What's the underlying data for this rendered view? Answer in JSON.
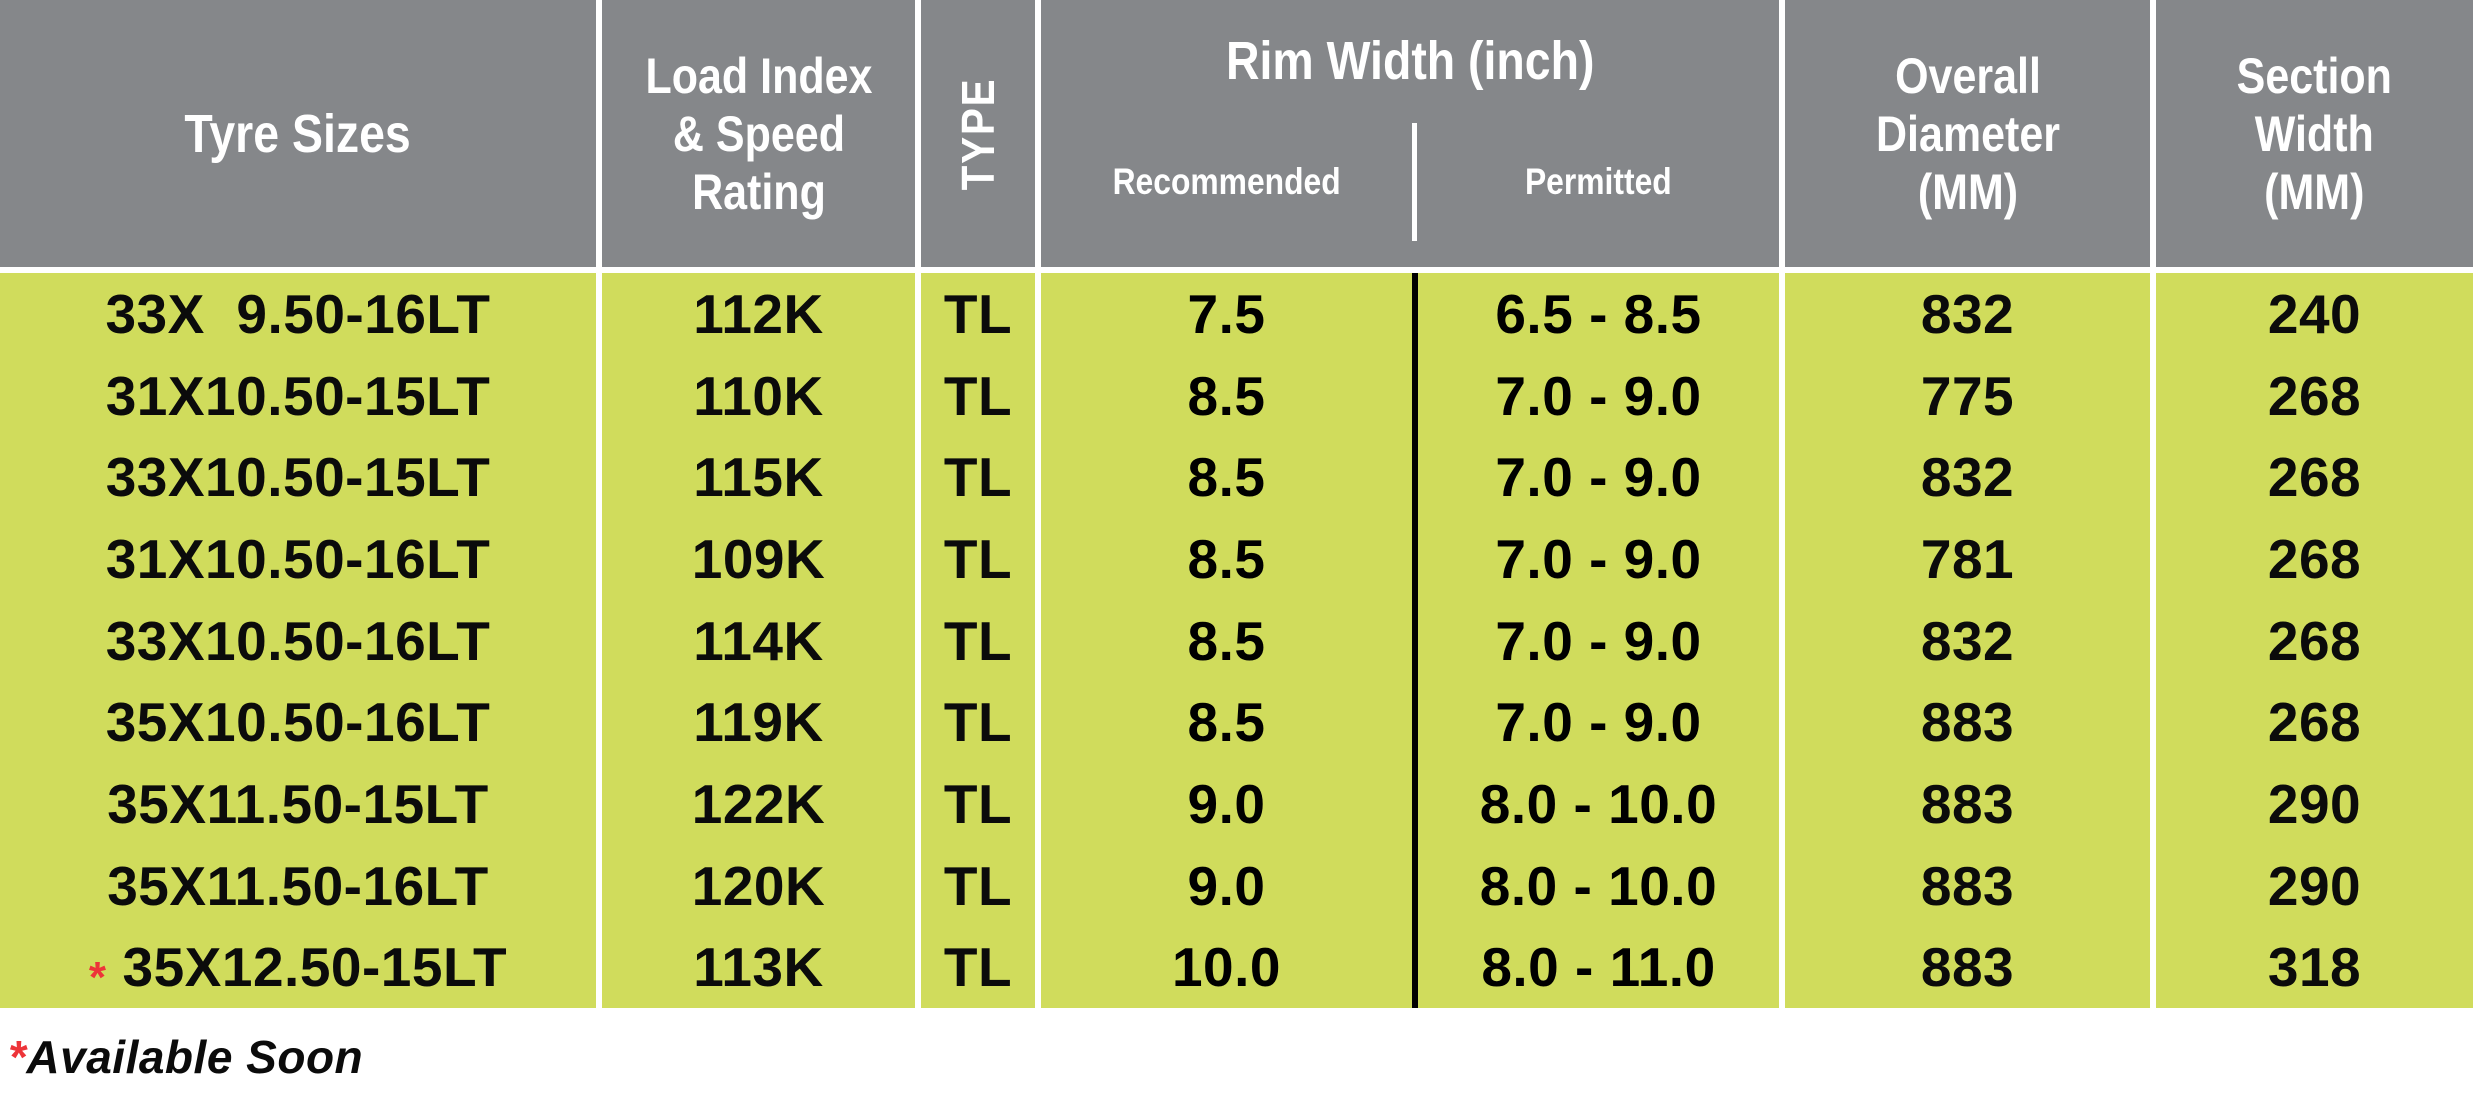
{
  "colors": {
    "header_bg": "#85878a",
    "body_bg": "#d0dc5c",
    "marker_red": "#ed3439",
    "separator_white": "#ffffff",
    "divider_black": "#000000",
    "text_black": "#0b0b0b",
    "header_text": "#ffffff"
  },
  "table": {
    "headers": {
      "tyre_sizes": "Tyre Sizes",
      "load_index_lines": [
        "Load Index",
        "& Speed",
        "Rating"
      ],
      "type": "TYPE",
      "rim_width": "Rim Width (inch)",
      "recommended": "Recommended",
      "permitted": "Permitted",
      "overall_diameter_lines": [
        "Overall",
        "Diameter",
        "(MM)"
      ],
      "section_width_lines": [
        "Section",
        "Width",
        "(MM)"
      ]
    },
    "rows": [
      {
        "tyre_size": "33X  9.50-16LT",
        "load_index": "112K",
        "type": "TL",
        "recommended": "7.5",
        "permitted": "6.5 - 8.5",
        "overall_diameter": "832",
        "section_width": "240"
      },
      {
        "tyre_size": "31X10.50-15LT",
        "load_index": "110K",
        "type": "TL",
        "recommended": "8.5",
        "permitted": "7.0 - 9.0",
        "overall_diameter": "775",
        "section_width": "268"
      },
      {
        "tyre_size": "33X10.50-15LT",
        "load_index": "115K",
        "type": "TL",
        "recommended": "8.5",
        "permitted": "7.0 - 9.0",
        "overall_diameter": "832",
        "section_width": "268"
      },
      {
        "tyre_size": "31X10.50-16LT",
        "load_index": "109K",
        "type": "TL",
        "recommended": "8.5",
        "permitted": "7.0 - 9.0",
        "overall_diameter": "781",
        "section_width": "268"
      },
      {
        "tyre_size": "33X10.50-16LT",
        "load_index": "114K",
        "type": "TL",
        "recommended": "8.5",
        "permitted": "7.0 - 9.0",
        "overall_diameter": "832",
        "section_width": "268"
      },
      {
        "tyre_size": "35X10.50-16LT",
        "load_index": "119K",
        "type": "TL",
        "recommended": "8.5",
        "permitted": "7.0 - 9.0",
        "overall_diameter": "883",
        "section_width": "268"
      },
      {
        "tyre_size": "35X11.50-15LT",
        "load_index": "122K",
        "type": "TL",
        "recommended": "9.0",
        "permitted": "8.0 - 10.0",
        "overall_diameter": "883",
        "section_width": "290"
      },
      {
        "tyre_size": "35X11.50-16LT",
        "load_index": "120K",
        "type": "TL",
        "recommended": "9.0",
        "permitted": "8.0 - 10.0",
        "overall_diameter": "883",
        "section_width": "290"
      },
      {
        "tyre_size": "35X12.50-15LT",
        "load_index": "113K",
        "type": "TL",
        "recommended": "10.0",
        "permitted": "8.0 - 11.0",
        "overall_diameter": "883",
        "section_width": "318",
        "marker": "*"
      }
    ]
  },
  "footnote": {
    "marker": "*",
    "text": "Available Soon"
  }
}
